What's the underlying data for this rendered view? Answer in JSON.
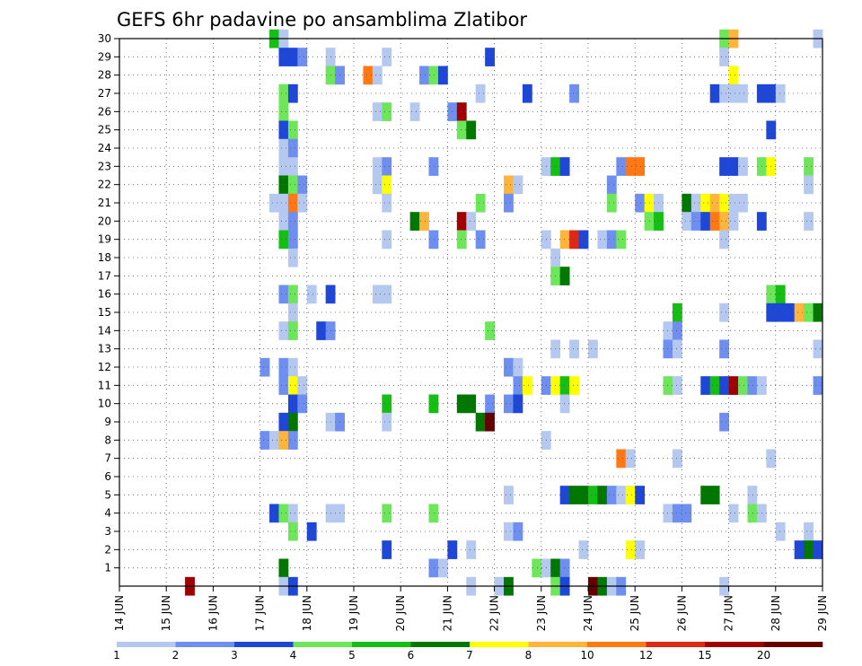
{
  "chart_data": {
    "type": "heatmap",
    "title": "GEFS 6hr padavine po ansamblima Zlatibor",
    "xlabel": "",
    "ylabel": "",
    "x_tick_labels": [
      "14 JUN",
      "15 JUN",
      "16 JUN",
      "17 JUN",
      "18 JUN",
      "19 JUN",
      "20 JUN",
      "21 JUN",
      "22 JUN",
      "23 JUN",
      "24 JUN",
      "25 JUN",
      "26 JUN",
      "27 JUN",
      "28 JUN",
      "29 JUN"
    ],
    "xlim_days": [
      0,
      15
    ],
    "y_tick_labels": [
      "1",
      "2",
      "3",
      "4",
      "5",
      "6",
      "7",
      "8",
      "9",
      "10",
      "11",
      "12",
      "13",
      "14",
      "15",
      "16",
      "17",
      "18",
      "19",
      "20",
      "21",
      "22",
      "23",
      "24",
      "25",
      "26",
      "27",
      "28",
      "29",
      "30"
    ],
    "ylim": [
      0,
      30
    ],
    "grid": true,
    "colorbar": {
      "placement": "bottom",
      "levels": [
        "1",
        "2",
        "3",
        "4",
        "5",
        "6",
        "7",
        "8",
        "10",
        "12",
        "15",
        "20"
      ],
      "colors": [
        "#b4c8f0",
        "#6e8ff0",
        "#1e46d7",
        "#6ee65a",
        "#14be14",
        "#007800",
        "#ffff00",
        "#ffb43c",
        "#ff7814",
        "#dc2814",
        "#a00000",
        "#640000"
      ]
    },
    "cells": [
      [
        3.2,
        30,
        5
      ],
      [
        3.4,
        30,
        1
      ],
      [
        12.8,
        30,
        4
      ],
      [
        13.0,
        30,
        8
      ],
      [
        14.8,
        30,
        1
      ],
      [
        3.4,
        29,
        3
      ],
      [
        3.6,
        29,
        3
      ],
      [
        3.8,
        29,
        2
      ],
      [
        4.4,
        29,
        1
      ],
      [
        5.6,
        29,
        1
      ],
      [
        7.8,
        29,
        3
      ],
      [
        12.8,
        29,
        1
      ],
      [
        4.4,
        28,
        4
      ],
      [
        4.6,
        28,
        2
      ],
      [
        5.2,
        28,
        9
      ],
      [
        5.4,
        28,
        1
      ],
      [
        6.4,
        28,
        2
      ],
      [
        6.6,
        28,
        4
      ],
      [
        6.8,
        28,
        3
      ],
      [
        13.0,
        28,
        7
      ],
      [
        3.4,
        27,
        4
      ],
      [
        3.6,
        27,
        3
      ],
      [
        7.6,
        27,
        1
      ],
      [
        8.6,
        27,
        3
      ],
      [
        9.6,
        27,
        2
      ],
      [
        12.6,
        27,
        3
      ],
      [
        12.8,
        27,
        1
      ],
      [
        13.0,
        27,
        1
      ],
      [
        13.2,
        27,
        1
      ],
      [
        13.6,
        27,
        3
      ],
      [
        13.8,
        27,
        3
      ],
      [
        14.0,
        27,
        1
      ],
      [
        3.4,
        26,
        4
      ],
      [
        5.4,
        26,
        1
      ],
      [
        5.6,
        26,
        4
      ],
      [
        6.2,
        26,
        1
      ],
      [
        7.0,
        26,
        2
      ],
      [
        7.2,
        26,
        11
      ],
      [
        3.4,
        25,
        3
      ],
      [
        3.6,
        25,
        4
      ],
      [
        7.2,
        25,
        4
      ],
      [
        7.4,
        25,
        6
      ],
      [
        13.8,
        25,
        3
      ],
      [
        3.4,
        24,
        1
      ],
      [
        3.6,
        24,
        2
      ],
      [
        3.4,
        23,
        1
      ],
      [
        3.6,
        23,
        1
      ],
      [
        5.4,
        23,
        1
      ],
      [
        5.6,
        23,
        2
      ],
      [
        6.6,
        23,
        2
      ],
      [
        9.0,
        23,
        1
      ],
      [
        9.2,
        23,
        5
      ],
      [
        9.4,
        23,
        3
      ],
      [
        10.6,
        23,
        2
      ],
      [
        10.8,
        23,
        9
      ],
      [
        11.0,
        23,
        9
      ],
      [
        12.8,
        23,
        3
      ],
      [
        13.0,
        23,
        3
      ],
      [
        13.2,
        23,
        1
      ],
      [
        13.6,
        23,
        4
      ],
      [
        13.8,
        23,
        7
      ],
      [
        14.6,
        23,
        4
      ],
      [
        3.4,
        22,
        6
      ],
      [
        3.6,
        22,
        4
      ],
      [
        3.8,
        22,
        2
      ],
      [
        5.4,
        22,
        1
      ],
      [
        5.6,
        22,
        7
      ],
      [
        8.2,
        22,
        8
      ],
      [
        8.4,
        22,
        1
      ],
      [
        10.4,
        22,
        2
      ],
      [
        14.6,
        22,
        1
      ],
      [
        3.2,
        21,
        1
      ],
      [
        3.4,
        21,
        1
      ],
      [
        3.6,
        21,
        9
      ],
      [
        3.8,
        21,
        1
      ],
      [
        5.6,
        21,
        1
      ],
      [
        7.6,
        21,
        4
      ],
      [
        8.2,
        21,
        2
      ],
      [
        10.4,
        21,
        4
      ],
      [
        11.0,
        21,
        2
      ],
      [
        11.2,
        21,
        7
      ],
      [
        11.4,
        21,
        1
      ],
      [
        12.0,
        21,
        6
      ],
      [
        12.2,
        21,
        1
      ],
      [
        12.4,
        21,
        7
      ],
      [
        12.6,
        21,
        8
      ],
      [
        12.8,
        21,
        7
      ],
      [
        13.0,
        21,
        1
      ],
      [
        13.2,
        21,
        1
      ],
      [
        3.4,
        20,
        1
      ],
      [
        3.6,
        20,
        2
      ],
      [
        6.2,
        20,
        6
      ],
      [
        6.4,
        20,
        8
      ],
      [
        7.2,
        20,
        11
      ],
      [
        7.4,
        20,
        1
      ],
      [
        11.2,
        20,
        4
      ],
      [
        11.4,
        20,
        5
      ],
      [
        12.0,
        20,
        1
      ],
      [
        12.2,
        20,
        2
      ],
      [
        12.4,
        20,
        3
      ],
      [
        12.6,
        20,
        9
      ],
      [
        12.8,
        20,
        8
      ],
      [
        13.0,
        20,
        1
      ],
      [
        13.6,
        20,
        3
      ],
      [
        14.6,
        20,
        1
      ],
      [
        3.4,
        19,
        5
      ],
      [
        3.6,
        19,
        2
      ],
      [
        5.6,
        19,
        1
      ],
      [
        6.6,
        19,
        2
      ],
      [
        7.2,
        19,
        4
      ],
      [
        7.6,
        19,
        2
      ],
      [
        9.0,
        19,
        1
      ],
      [
        9.4,
        19,
        8
      ],
      [
        9.6,
        19,
        10
      ],
      [
        9.8,
        19,
        3
      ],
      [
        10.2,
        19,
        1
      ],
      [
        10.4,
        19,
        2
      ],
      [
        10.6,
        19,
        4
      ],
      [
        12.8,
        19,
        1
      ],
      [
        3.6,
        18,
        1
      ],
      [
        9.2,
        18,
        1
      ],
      [
        9.2,
        17,
        4
      ],
      [
        9.4,
        17,
        6
      ],
      [
        3.4,
        16,
        2
      ],
      [
        3.6,
        16,
        4
      ],
      [
        4.0,
        16,
        1
      ],
      [
        4.4,
        16,
        3
      ],
      [
        5.4,
        16,
        1
      ],
      [
        5.6,
        16,
        1
      ],
      [
        13.8,
        16,
        4
      ],
      [
        14.0,
        16,
        5
      ],
      [
        3.6,
        15,
        1
      ],
      [
        11.8,
        15,
        5
      ],
      [
        12.8,
        15,
        1
      ],
      [
        13.8,
        15,
        3
      ],
      [
        14.0,
        15,
        3
      ],
      [
        14.2,
        15,
        3
      ],
      [
        14.4,
        15,
        8
      ],
      [
        14.6,
        15,
        4
      ],
      [
        14.8,
        15,
        6
      ],
      [
        3.4,
        14,
        1
      ],
      [
        3.6,
        14,
        4
      ],
      [
        4.2,
        14,
        3
      ],
      [
        4.4,
        14,
        2
      ],
      [
        7.8,
        14,
        4
      ],
      [
        11.6,
        14,
        1
      ],
      [
        11.8,
        14,
        2
      ],
      [
        9.2,
        13,
        1
      ],
      [
        9.6,
        13,
        1
      ],
      [
        10.0,
        13,
        1
      ],
      [
        11.6,
        13,
        2
      ],
      [
        11.8,
        13,
        1
      ],
      [
        12.8,
        13,
        2
      ],
      [
        14.8,
        13,
        1
      ],
      [
        3.0,
        12,
        2
      ],
      [
        3.4,
        12,
        2
      ],
      [
        3.6,
        12,
        1
      ],
      [
        8.2,
        12,
        2
      ],
      [
        8.4,
        12,
        1
      ],
      [
        3.4,
        11,
        2
      ],
      [
        3.6,
        11,
        7
      ],
      [
        3.8,
        11,
        1
      ],
      [
        8.4,
        11,
        2
      ],
      [
        8.6,
        11,
        7
      ],
      [
        9.0,
        11,
        2
      ],
      [
        9.2,
        11,
        7
      ],
      [
        9.4,
        11,
        5
      ],
      [
        9.6,
        11,
        7
      ],
      [
        11.6,
        11,
        4
      ],
      [
        11.8,
        11,
        1
      ],
      [
        12.4,
        11,
        3
      ],
      [
        12.6,
        11,
        5
      ],
      [
        12.8,
        11,
        3
      ],
      [
        13.0,
        11,
        11
      ],
      [
        13.2,
        11,
        4
      ],
      [
        13.4,
        11,
        2
      ],
      [
        13.6,
        11,
        1
      ],
      [
        14.8,
        11,
        2
      ],
      [
        3.6,
        10,
        3
      ],
      [
        3.8,
        10,
        2
      ],
      [
        5.6,
        10,
        5
      ],
      [
        6.6,
        10,
        5
      ],
      [
        7.2,
        10,
        6
      ],
      [
        7.4,
        10,
        6
      ],
      [
        7.8,
        10,
        2
      ],
      [
        8.2,
        10,
        2
      ],
      [
        8.4,
        10,
        3
      ],
      [
        9.4,
        10,
        1
      ],
      [
        3.4,
        9,
        3
      ],
      [
        3.6,
        9,
        6
      ],
      [
        4.4,
        9,
        1
      ],
      [
        4.6,
        9,
        2
      ],
      [
        5.6,
        9,
        1
      ],
      [
        7.6,
        9,
        6
      ],
      [
        7.8,
        9,
        12
      ],
      [
        12.8,
        9,
        2
      ],
      [
        3.0,
        8,
        2
      ],
      [
        3.2,
        8,
        1
      ],
      [
        3.4,
        8,
        8
      ],
      [
        3.6,
        8,
        2
      ],
      [
        9.0,
        8,
        1
      ],
      [
        10.6,
        7,
        9
      ],
      [
        10.8,
        7,
        1
      ],
      [
        11.8,
        7,
        1
      ],
      [
        13.8,
        7,
        1
      ],
      [
        8.2,
        5,
        1
      ],
      [
        9.4,
        5,
        3
      ],
      [
        9.6,
        5,
        6
      ],
      [
        9.8,
        5,
        6
      ],
      [
        10.0,
        5,
        5
      ],
      [
        10.2,
        5,
        6
      ],
      [
        10.4,
        5,
        2
      ],
      [
        10.6,
        5,
        1
      ],
      [
        10.8,
        5,
        7
      ],
      [
        11.0,
        5,
        3
      ],
      [
        12.4,
        5,
        6
      ],
      [
        12.6,
        5,
        6
      ],
      [
        13.4,
        5,
        1
      ],
      [
        3.2,
        4,
        3
      ],
      [
        3.4,
        4,
        4
      ],
      [
        3.6,
        4,
        1
      ],
      [
        4.4,
        4,
        1
      ],
      [
        4.6,
        4,
        1
      ],
      [
        5.6,
        4,
        4
      ],
      [
        6.6,
        4,
        4
      ],
      [
        11.6,
        4,
        1
      ],
      [
        11.8,
        4,
        2
      ],
      [
        12.0,
        4,
        2
      ],
      [
        13.0,
        4,
        1
      ],
      [
        13.4,
        4,
        4
      ],
      [
        13.6,
        4,
        1
      ],
      [
        3.6,
        3,
        4
      ],
      [
        4.0,
        3,
        3
      ],
      [
        8.2,
        3,
        1
      ],
      [
        8.4,
        3,
        2
      ],
      [
        14.0,
        3,
        1
      ],
      [
        14.6,
        3,
        1
      ],
      [
        5.6,
        2,
        3
      ],
      [
        7.0,
        2,
        3
      ],
      [
        7.4,
        2,
        1
      ],
      [
        9.8,
        2,
        1
      ],
      [
        10.8,
        2,
        7
      ],
      [
        11.0,
        2,
        1
      ],
      [
        14.4,
        2,
        3
      ],
      [
        14.6,
        2,
        6
      ],
      [
        14.8,
        2,
        3
      ],
      [
        3.4,
        1,
        6
      ],
      [
        6.6,
        1,
        2
      ],
      [
        6.8,
        1,
        1
      ],
      [
        8.8,
        1,
        4
      ],
      [
        9.0,
        1,
        1
      ],
      [
        9.2,
        1,
        6
      ],
      [
        9.4,
        1,
        2
      ],
      [
        3.4,
        0,
        1
      ],
      [
        3.6,
        0,
        3
      ],
      [
        7.4,
        0,
        1
      ],
      [
        8.0,
        0,
        1
      ],
      [
        8.2,
        0,
        6
      ],
      [
        9.2,
        0,
        4
      ],
      [
        9.4,
        0,
        3
      ],
      [
        10.0,
        0,
        12
      ],
      [
        10.2,
        0,
        6
      ],
      [
        10.4,
        0,
        1
      ],
      [
        10.6,
        0,
        2
      ],
      [
        12.8,
        0,
        1
      ],
      [
        1.4,
        0,
        11
      ]
    ]
  }
}
